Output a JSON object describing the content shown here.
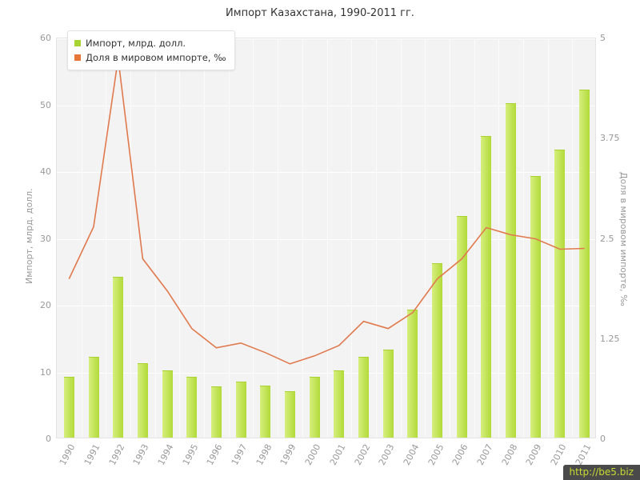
{
  "page": {
    "watermark": "http://be5.biz"
  },
  "legend": {
    "items": [
      {
        "label": "Импорт, млрд. долл.",
        "color": "#a8d431"
      },
      {
        "label": "Доля в мировом импорте, ‰",
        "color": "#e8763a"
      }
    ]
  },
  "chart_data": {
    "type": "bar",
    "title": "Импорт Казахстана, 1990-2011 гг.",
    "categories": [
      "1990",
      "1991",
      "1992",
      "1993",
      "1994",
      "1995",
      "1996",
      "1997",
      "1998",
      "1999",
      "2000",
      "2001",
      "2002",
      "2003",
      "2004",
      "2005",
      "2006",
      "2007",
      "2008",
      "2009",
      "2010",
      "2011"
    ],
    "series": [
      {
        "name": "Импорт, млрд. долл.",
        "type": "bar",
        "axis": "left",
        "color": "#b2da39",
        "values": [
          9,
          12,
          24,
          11,
          10,
          9,
          7.5,
          8.3,
          7.7,
          6.8,
          9,
          10,
          12,
          13,
          19,
          26,
          33,
          45,
          50,
          39,
          43,
          52
        ]
      },
      {
        "name": "Доля в мировом импорте, ‰",
        "type": "line",
        "axis": "right",
        "color": "#e07a4e",
        "values": [
          2.0,
          2.65,
          4.75,
          2.25,
          1.85,
          1.38,
          1.14,
          1.2,
          1.08,
          0.94,
          1.04,
          1.17,
          1.47,
          1.38,
          1.58,
          2.0,
          2.25,
          2.64,
          2.55,
          2.5,
          2.37,
          2.38
        ]
      }
    ],
    "left_axis": {
      "label": "Импорт, млрд. долл.",
      "min": 0,
      "max": 60,
      "ticks": [
        0,
        10,
        20,
        30,
        40,
        50,
        60
      ]
    },
    "right_axis": {
      "label": "Доля в мировом импорте, ‰",
      "min": 0,
      "max": 5,
      "ticks": [
        0,
        1.25,
        2.5,
        3.75,
        5
      ]
    },
    "grid": true,
    "legend_position": "top-left",
    "plot_background": "#f3f3f3"
  }
}
